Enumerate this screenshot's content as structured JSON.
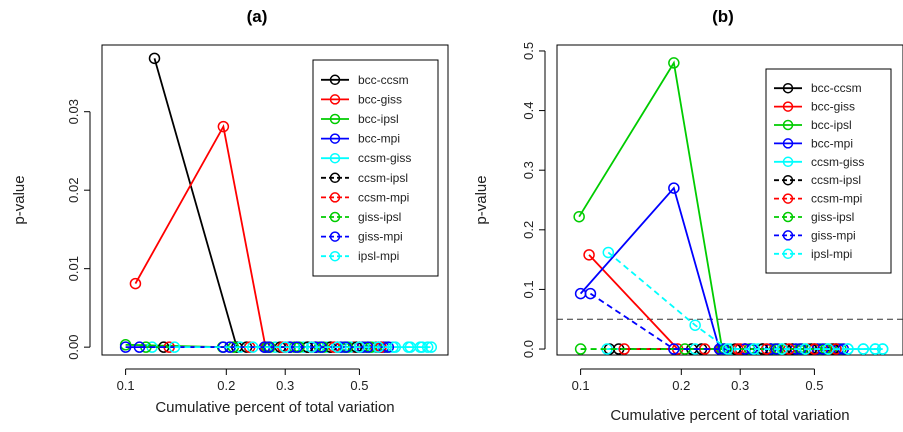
{
  "figure": {
    "title": ""
  },
  "chart_data": [
    {
      "type": "line",
      "title": "(a)",
      "xlabel": "Cumulative percent of total variation",
      "ylabel": "p-value",
      "x_scale": "log",
      "xlim": [
        0.085,
        0.92
      ],
      "ylim": [
        -0.001,
        0.0385
      ],
      "xticks": [
        0.1,
        0.2,
        0.3,
        0.5
      ],
      "xtick_labels": [
        "0.1",
        "0.2",
        "0.3",
        "0.5"
      ],
      "yticks": [
        0.0,
        0.01,
        0.02,
        0.03
      ],
      "ytick_labels": [
        "0.00",
        "0.01",
        "0.02",
        "0.03"
      ],
      "hlines": [],
      "legend_position": "top-right",
      "series": [
        {
          "name": "bcc-ccsm",
          "color": "#000000",
          "dashed": false,
          "points": [
            [
              0.122,
              0.0368
            ],
            [
              0.215,
              0.0
            ],
            [
              0.262,
              0.0
            ],
            [
              0.31,
              0.0
            ],
            [
              0.37,
              0.0
            ],
            [
              0.43,
              0.0
            ],
            [
              0.5,
              0.0
            ],
            [
              0.58,
              0.0
            ]
          ]
        },
        {
          "name": "bcc-giss",
          "color": "#ff0000",
          "dashed": false,
          "points": [
            [
              0.107,
              0.0081
            ],
            [
              0.196,
              0.0281
            ],
            [
              0.262,
              0.0
            ],
            [
              0.3,
              0.0
            ],
            [
              0.35,
              0.0
            ],
            [
              0.41,
              0.0
            ],
            [
              0.48,
              0.0
            ],
            [
              0.56,
              0.0
            ]
          ]
        },
        {
          "name": "bcc-ipsl",
          "color": "#00cc00",
          "dashed": false,
          "points": [
            [
              0.1,
              0.0003
            ],
            [
              0.195,
              0.0
            ],
            [
              0.265,
              0.0
            ],
            [
              0.32,
              0.0
            ],
            [
              0.38,
              0.0
            ],
            [
              0.45,
              0.0
            ],
            [
              0.52,
              0.0
            ],
            [
              0.6,
              0.0
            ]
          ]
        },
        {
          "name": "bcc-mpi",
          "color": "#0000ff",
          "dashed": false,
          "points": [
            [
              0.1,
              0.0
            ],
            [
              0.196,
              0.0
            ],
            [
              0.26,
              0.0
            ],
            [
              0.31,
              0.0
            ],
            [
              0.37,
              0.0
            ],
            [
              0.44,
              0.0
            ],
            [
              0.51,
              0.0
            ],
            [
              0.59,
              0.0
            ]
          ]
        },
        {
          "name": "ccsm-giss",
          "color": "#00ffff",
          "dashed": false,
          "points": [
            [
              0.12,
              0.0
            ],
            [
              0.22,
              0.0
            ],
            [
              0.28,
              0.0
            ],
            [
              0.34,
              0.0
            ],
            [
              0.4,
              0.0
            ],
            [
              0.47,
              0.0
            ],
            [
              0.55,
              0.0
            ],
            [
              0.63,
              0.0
            ],
            [
              0.7,
              0.0
            ],
            [
              0.76,
              0.0
            ],
            [
              0.8,
              0.0
            ]
          ]
        },
        {
          "name": "ccsm-ipsl",
          "color": "#000000",
          "dashed": true,
          "points": [
            [
              0.13,
              0.0
            ],
            [
              0.23,
              0.0
            ],
            [
              0.29,
              0.0
            ],
            [
              0.35,
              0.0
            ],
            [
              0.41,
              0.0
            ],
            [
              0.49,
              0.0
            ],
            [
              0.57,
              0.0
            ]
          ]
        },
        {
          "name": "ccsm-mpi",
          "color": "#ff0000",
          "dashed": true,
          "points": [
            [
              0.135,
              0.0
            ],
            [
              0.235,
              0.0
            ],
            [
              0.295,
              0.0
            ],
            [
              0.36,
              0.0
            ],
            [
              0.42,
              0.0
            ],
            [
              0.5,
              0.0
            ],
            [
              0.58,
              0.0
            ]
          ]
        },
        {
          "name": "giss-ipsl",
          "color": "#00cc00",
          "dashed": true,
          "points": [
            [
              0.115,
              0.0
            ],
            [
              0.21,
              0.0
            ],
            [
              0.27,
              0.0
            ],
            [
              0.33,
              0.0
            ],
            [
              0.39,
              0.0
            ],
            [
              0.46,
              0.0
            ],
            [
              0.54,
              0.0
            ]
          ]
        },
        {
          "name": "giss-mpi",
          "color": "#0000ff",
          "dashed": true,
          "points": [
            [
              0.11,
              0.0
            ],
            [
              0.205,
              0.0
            ],
            [
              0.268,
              0.0
            ],
            [
              0.325,
              0.0
            ],
            [
              0.385,
              0.0
            ],
            [
              0.455,
              0.0
            ],
            [
              0.53,
              0.0
            ],
            [
              0.61,
              0.0
            ]
          ]
        },
        {
          "name": "ipsl-mpi",
          "color": "#00ffff",
          "dashed": true,
          "points": [
            [
              0.14,
              0.0
            ],
            [
              0.24,
              0.0
            ],
            [
              0.3,
              0.0
            ],
            [
              0.36,
              0.0
            ],
            [
              0.43,
              0.0
            ],
            [
              0.5,
              0.0
            ],
            [
              0.57,
              0.0
            ],
            [
              0.64,
              0.0
            ],
            [
              0.71,
              0.0
            ],
            [
              0.77,
              0.0
            ],
            [
              0.82,
              0.0
            ]
          ]
        }
      ]
    },
    {
      "type": "line",
      "title": "(b)",
      "xlabel": "Cumulative percent of total variation",
      "ylabel": "p-value",
      "x_scale": "log",
      "xlim": [
        0.085,
        0.92
      ],
      "ylim": [
        -0.01,
        0.51
      ],
      "xticks": [
        0.1,
        0.2,
        0.3,
        0.5
      ],
      "xtick_labels": [
        "0.1",
        "0.2",
        "0.3",
        "0.5"
      ],
      "yticks": [
        0.0,
        0.1,
        0.2,
        0.3,
        0.4,
        0.5
      ],
      "ytick_labels": [
        "0.0",
        "0.1",
        "0.2",
        "0.3",
        "0.4",
        "0.5"
      ],
      "hlines": [
        {
          "y": 0.05,
          "color": "#333333",
          "dashed": true
        }
      ],
      "legend_position": "top-right",
      "series": [
        {
          "name": "bcc-ccsm",
          "color": "#000000",
          "dashed": false,
          "points": [
            [
              0.122,
              0.0
            ],
            [
              0.215,
              0.0
            ],
            [
              0.262,
              0.0
            ],
            [
              0.31,
              0.0
            ],
            [
              0.37,
              0.0
            ],
            [
              0.43,
              0.0
            ],
            [
              0.5,
              0.0
            ],
            [
              0.58,
              0.0
            ]
          ]
        },
        {
          "name": "bcc-giss",
          "color": "#ff0000",
          "dashed": false,
          "points": [
            [
              0.106,
              0.158
            ],
            [
              0.195,
              0.0
            ],
            [
              0.262,
              0.0
            ],
            [
              0.3,
              0.0
            ],
            [
              0.35,
              0.0
            ],
            [
              0.41,
              0.0
            ],
            [
              0.48,
              0.0
            ],
            [
              0.56,
              0.0
            ]
          ]
        },
        {
          "name": "bcc-ipsl",
          "color": "#00cc00",
          "dashed": false,
          "points": [
            [
              0.099,
              0.222
            ],
            [
              0.19,
              0.48
            ],
            [
              0.265,
              0.0
            ],
            [
              0.32,
              0.0
            ],
            [
              0.38,
              0.0
            ],
            [
              0.45,
              0.0
            ],
            [
              0.52,
              0.0
            ],
            [
              0.6,
              0.0
            ]
          ]
        },
        {
          "name": "bcc-mpi",
          "color": "#0000ff",
          "dashed": false,
          "points": [
            [
              0.1,
              0.093
            ],
            [
              0.19,
              0.27
            ],
            [
              0.26,
              0.0
            ],
            [
              0.31,
              0.0
            ],
            [
              0.37,
              0.0
            ],
            [
              0.44,
              0.0
            ],
            [
              0.51,
              0.0
            ],
            [
              0.59,
              0.0
            ]
          ]
        },
        {
          "name": "ccsm-giss",
          "color": "#00ffff",
          "dashed": false,
          "points": [
            [
              0.12,
              0.0
            ],
            [
              0.22,
              0.0
            ],
            [
              0.28,
              0.0
            ],
            [
              0.34,
              0.0
            ],
            [
              0.4,
              0.0
            ],
            [
              0.47,
              0.0
            ],
            [
              0.55,
              0.0
            ],
            [
              0.63,
              0.0
            ],
            [
              0.7,
              0.0
            ],
            [
              0.76,
              0.0
            ],
            [
              0.8,
              0.0
            ]
          ]
        },
        {
          "name": "ccsm-ipsl",
          "color": "#000000",
          "dashed": true,
          "points": [
            [
              0.13,
              0.0
            ],
            [
              0.23,
              0.0
            ],
            [
              0.29,
              0.0
            ],
            [
              0.35,
              0.0
            ],
            [
              0.41,
              0.0
            ],
            [
              0.49,
              0.0
            ],
            [
              0.57,
              0.0
            ]
          ]
        },
        {
          "name": "ccsm-mpi",
          "color": "#ff0000",
          "dashed": true,
          "points": [
            [
              0.135,
              0.0
            ],
            [
              0.235,
              0.0
            ],
            [
              0.295,
              0.0
            ],
            [
              0.36,
              0.0
            ],
            [
              0.42,
              0.0
            ],
            [
              0.5,
              0.0
            ],
            [
              0.58,
              0.0
            ]
          ]
        },
        {
          "name": "giss-ipsl",
          "color": "#00cc00",
          "dashed": true,
          "points": [
            [
              0.1,
              0.0
            ],
            [
              0.205,
              0.0
            ],
            [
              0.27,
              0.0
            ],
            [
              0.33,
              0.0
            ],
            [
              0.39,
              0.0
            ],
            [
              0.46,
              0.0
            ],
            [
              0.54,
              0.0
            ]
          ]
        },
        {
          "name": "giss-mpi",
          "color": "#0000ff",
          "dashed": true,
          "points": [
            [
              0.107,
              0.093
            ],
            [
              0.19,
              0.0
            ],
            [
              0.268,
              0.0
            ],
            [
              0.325,
              0.0
            ],
            [
              0.385,
              0.0
            ],
            [
              0.455,
              0.0
            ],
            [
              0.53,
              0.0
            ],
            [
              0.61,
              0.0
            ]
          ]
        },
        {
          "name": "ipsl-mpi",
          "color": "#00ffff",
          "dashed": true,
          "points": [
            [
              0.121,
              0.162
            ],
            [
              0.22,
              0.04
            ],
            [
              0.275,
              0.0
            ],
            [
              0.33,
              0.0
            ],
            [
              0.4,
              0.0
            ],
            [
              0.47,
              0.0
            ],
            [
              0.55,
              0.0
            ],
            [
              0.63,
              0.0
            ],
            [
              0.7,
              0.0
            ],
            [
              0.76,
              0.0
            ],
            [
              0.8,
              0.0
            ]
          ]
        }
      ]
    }
  ]
}
